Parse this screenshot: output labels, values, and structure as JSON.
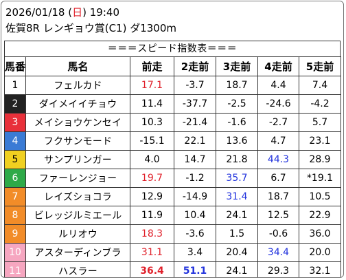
{
  "header": {
    "date": "2026/01/18",
    "weekday_open": "(",
    "weekday": "日",
    "weekday_close": ")",
    "time": "19:40",
    "race": "佐賀8R レンギョウ賞(C1) ダ1300m"
  },
  "table_title": "＝＝＝スピード指数表＝＝＝",
  "columns": [
    "馬番",
    "馬名",
    "前走",
    "2走前",
    "3走前",
    "4走前",
    "5走前"
  ],
  "frame_colors": {
    "1": "#ffffff",
    "2": "#222222",
    "3": "#e8303a",
    "4": "#3a7bd5",
    "5": "#f0d020",
    "6": "#2eaa48",
    "7": "#f28c28",
    "8": "#f6a6c0",
    "value_red": "#e0202a",
    "value_blue": "#2233dd"
  },
  "rows": [
    {
      "num": "1",
      "frame": "1",
      "name": "フェルカド",
      "v": [
        "17.1",
        "-3.7",
        "18.7",
        "4.4",
        "7.4"
      ],
      "style": [
        "red",
        "",
        "",
        "",
        ""
      ]
    },
    {
      "num": "2",
      "frame": "2",
      "name": "ダイメイイチョウ",
      "v": [
        "11.4",
        "-37.7",
        "-2.5",
        "-24.6",
        "-4.2"
      ],
      "style": [
        "",
        "",
        "",
        "",
        ""
      ]
    },
    {
      "num": "3",
      "frame": "3",
      "name": "メイショウケンセイ",
      "v": [
        "10.3",
        "-21.4",
        "-1.6",
        "-2.7",
        "5.7"
      ],
      "style": [
        "",
        "",
        "",
        "",
        ""
      ]
    },
    {
      "num": "4",
      "frame": "4",
      "name": "フクサンモード",
      "v": [
        "-15.1",
        "22.1",
        "13.6",
        "4.7",
        "23.1"
      ],
      "style": [
        "",
        "",
        "",
        "",
        ""
      ]
    },
    {
      "num": "5",
      "frame": "5",
      "name": "サンプリンガー",
      "v": [
        "4.0",
        "14.7",
        "21.8",
        "44.3",
        "28.9"
      ],
      "style": [
        "",
        "",
        "",
        "blue",
        ""
      ]
    },
    {
      "num": "6",
      "frame": "6",
      "name": "ファーレンジョー",
      "v": [
        "19.7",
        "-1.2",
        "35.7",
        "6.7",
        "*19.1"
      ],
      "style": [
        "red",
        "",
        "blue",
        "",
        ""
      ]
    },
    {
      "num": "7",
      "frame": "7",
      "name": "レイズショコラ",
      "v": [
        "12.9",
        "-14.9",
        "31.4",
        "18.7",
        "10.5"
      ],
      "style": [
        "",
        "",
        "blue",
        "",
        ""
      ]
    },
    {
      "num": "8",
      "frame": "7",
      "name": "ビレッジルミエール",
      "v": [
        "11.9",
        "10.4",
        "24.1",
        "12.5",
        "22.9"
      ],
      "style": [
        "",
        "",
        "",
        "",
        ""
      ]
    },
    {
      "num": "9",
      "frame": "7",
      "name": "ルリオウ",
      "v": [
        "18.3",
        "-3.6",
        "1.5",
        "-0.6",
        "36.0"
      ],
      "style": [
        "red",
        "",
        "",
        "",
        ""
      ]
    },
    {
      "num": "10",
      "frame": "8",
      "name": "アスターディンブラ",
      "v": [
        "31.1",
        "3.4",
        "20.4",
        "34.4",
        "20.0"
      ],
      "style": [
        "red",
        "",
        "",
        "blue",
        ""
      ]
    },
    {
      "num": "11",
      "frame": "8",
      "name": "ハスラー",
      "v": [
        "36.4",
        "51.1",
        "24.1",
        "29.3",
        "32.1"
      ],
      "style": [
        "red bold",
        "blue bold",
        "",
        "",
        ""
      ]
    }
  ]
}
